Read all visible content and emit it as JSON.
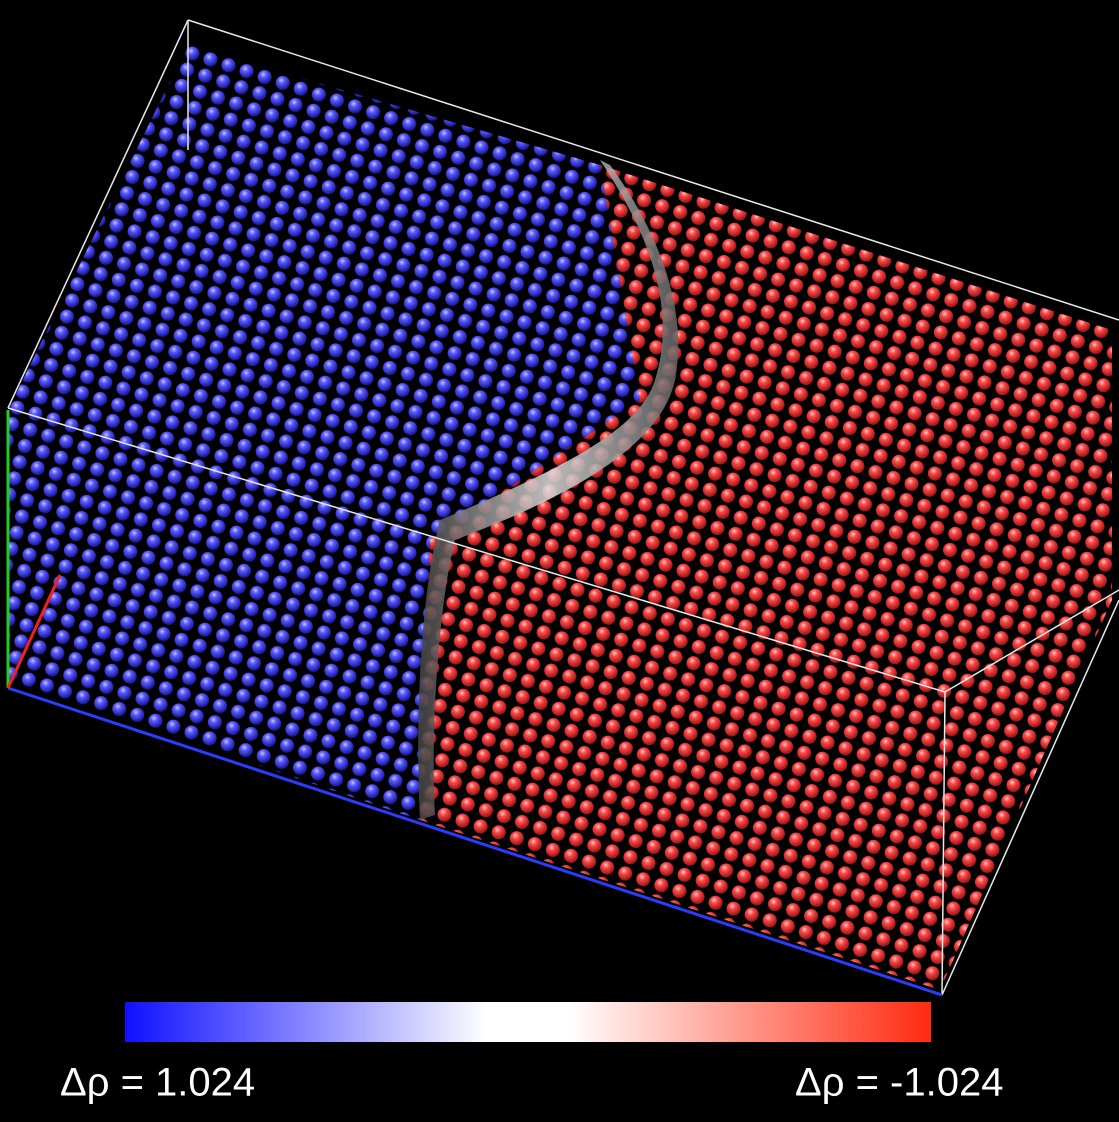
{
  "colorbar": {
    "min_label": "Δρ = 1.024",
    "max_label": "Δρ = -1.024"
  }
}
